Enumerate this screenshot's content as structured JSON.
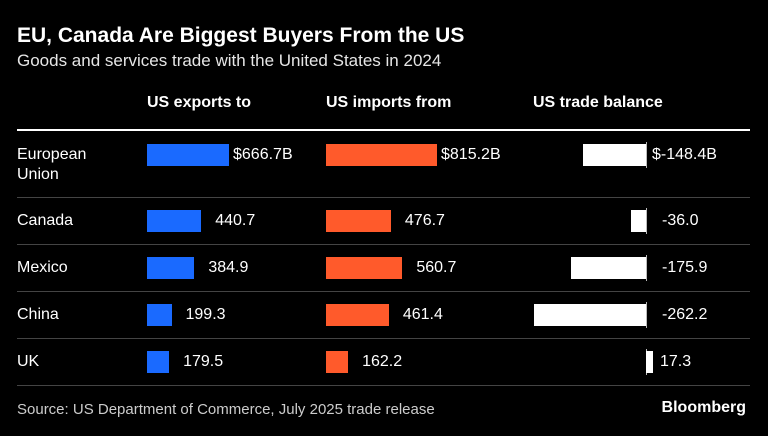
{
  "chart_data": {
    "type": "bar",
    "title": "EU, Canada Are Biggest Buyers From the US",
    "subtitle": "Goods and services trade with the United States in 2024",
    "categories": [
      [
        "European",
        "Union"
      ],
      [
        "Canada"
      ],
      [
        "Mexico"
      ],
      [
        "China"
      ],
      [
        "UK"
      ]
    ],
    "series": [
      {
        "name": "US exports to",
        "values": [
          666.7,
          440.7,
          384.9,
          199.3,
          179.5
        ],
        "labels": [
          "$666.7B",
          "440.7",
          "384.9",
          "199.3",
          "179.5"
        ],
        "color": "#1a6aff"
      },
      {
        "name": "US imports from",
        "values": [
          815.2,
          476.7,
          560.7,
          461.4,
          162.2
        ],
        "labels": [
          "$815.2B",
          "476.7",
          "560.7",
          "461.4",
          "162.2"
        ],
        "color": "#ff5a2b"
      },
      {
        "name": "US trade balance",
        "values": [
          -148.4,
          -36.0,
          -175.9,
          -262.2,
          17.3
        ],
        "labels": [
          "$-148.4B",
          "-36.0",
          "-175.9",
          "-262.2",
          "17.3"
        ],
        "color": "#ffffff"
      }
    ]
  },
  "footer": {
    "source": "Source: US Department of Commerce, July 2025 trade release",
    "brand": "Bloomberg"
  }
}
